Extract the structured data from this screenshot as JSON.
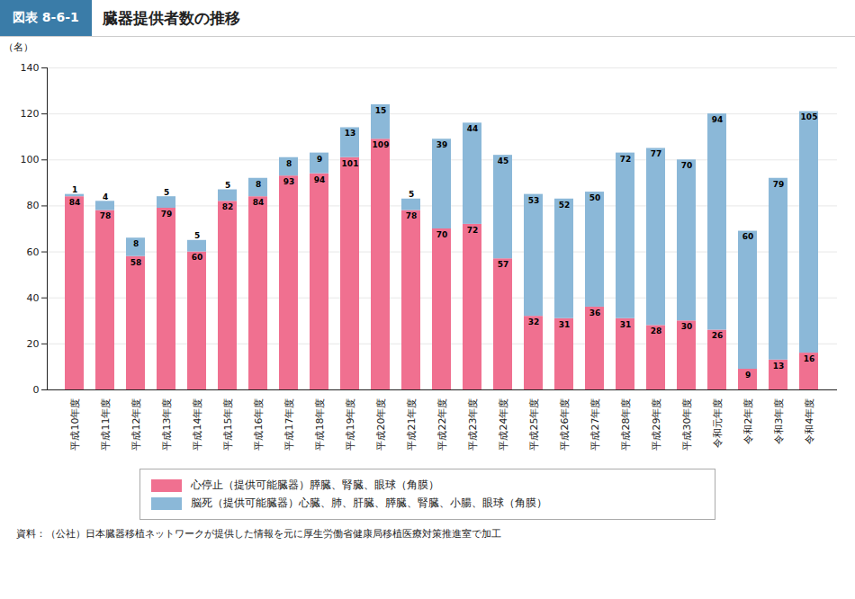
{
  "chart_data": {
    "type": "bar",
    "title": "臓器提供者数の推移",
    "annotations": [
      "図表 8-6-1",
      "資料：（公社）日本臓器移植ネットワークが提供した情報を元に厚生労働省健康局移植医療対策推進室で加工"
    ],
    "y_label": "（名）",
    "categories": [
      "平成10年度",
      "平成11年度",
      "平成12年度",
      "平成13年度",
      "平成14年度",
      "平成15年度",
      "平成16年度",
      "平成17年度",
      "平成18年度",
      "平成19年度",
      "平成20年度",
      "平成21年度",
      "平成22年度",
      "平成23年度",
      "平成24年度",
      "平成25年度",
      "平成26年度",
      "平成27年度",
      "平成28年度",
      "平成29年度",
      "平成30年度",
      "令和元年度",
      "令和2年度",
      "令和3年度",
      "令和4年度"
    ],
    "series": [
      {
        "name": "心停止（提供可能臓器）膵臓、腎臓、眼球（角膜）",
        "color": "#F07090",
        "values": [
          84,
          78,
          58,
          79,
          60,
          82,
          84,
          93,
          94,
          101,
          109,
          78,
          70,
          72,
          57,
          32,
          31,
          36,
          31,
          28,
          30,
          26,
          9,
          13,
          16
        ]
      },
      {
        "name": "脳死（提供可能臓器）心臓、肺、肝臓、膵臓、腎臓、小腸、眼球（角膜）",
        "color": "#8BB8D8",
        "values": [
          1,
          4,
          8,
          5,
          5,
          5,
          8,
          8,
          9,
          13,
          15,
          5,
          39,
          44,
          45,
          53,
          52,
          50,
          72,
          77,
          70,
          94,
          60,
          79,
          105
        ]
      }
    ],
    "stacked": true,
    "data_labels": true,
    "ylim": [
      0,
      140
    ],
    "yticks": [
      0,
      20,
      40,
      60,
      80,
      100,
      120,
      140
    ],
    "grid": true,
    "legend": "bottom"
  }
}
